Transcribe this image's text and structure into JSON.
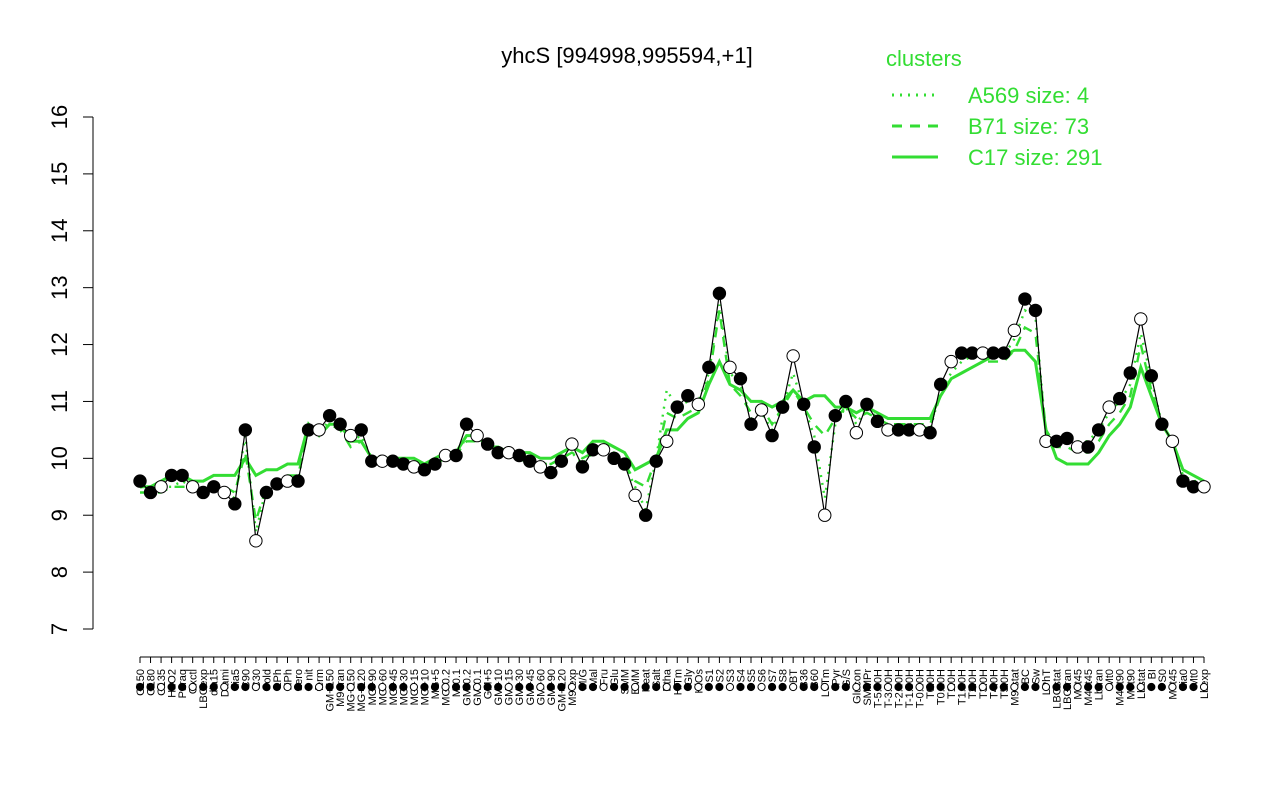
{
  "chart_data": {
    "type": "line",
    "title": "yhcS [994998,995594,+1]",
    "xlabel": "",
    "ylabel": "",
    "ylim": [
      7,
      16
    ],
    "yticks": [
      7,
      8,
      9,
      10,
      11,
      12,
      13,
      14,
      15,
      16
    ],
    "grid": false,
    "legend_position": "top-right",
    "legend": {
      "title": "clusters",
      "entries": [
        {
          "label": "A569 size: 4",
          "style": "dotted",
          "color": "#33dd33"
        },
        {
          "label": "B71 size: 73",
          "style": "dashed",
          "color": "#33dd33"
        },
        {
          "label": "C17 size: 291",
          "style": "solid",
          "color": "#33dd33"
        }
      ]
    },
    "x_tick_labels": [
      "G150",
      "G180",
      "G135",
      "H2O2",
      "Paraq",
      "Oxctl",
      "LBGexp",
      "dia15",
      "Diami",
      "dia5",
      "C90",
      "C30",
      "Cold",
      "LPh",
      "HPh",
      "aero",
      "nit",
      "ferm",
      "GM+150",
      "M9-tran",
      "MG+150",
      "MG+120",
      "MG+90",
      "MG+60",
      "MG+45",
      "MG+30",
      "MG+15",
      "MG+10",
      "MG+5",
      "MG-0.2",
      "M-0.1",
      "GM-0.2",
      "GM-0.1",
      "GM+5",
      "GM+10",
      "GM+15",
      "GM+30",
      "GM+45",
      "GM+60",
      "GM+90",
      "GM+120",
      "M9-exp",
      "M/G",
      "Mal",
      "Fru",
      "Glu",
      "SMM",
      "BMM",
      "Heat",
      "Salt",
      "Etha",
      "HiTm",
      "Gly",
      "HiOs",
      "S1",
      "S2",
      "S3",
      "S4",
      "S5",
      "S6",
      "S7",
      "S8",
      "BT",
      "B36",
      "B60",
      "LoTm",
      "Pyr",
      "G/S",
      "Glucon",
      "SMMPr",
      "T-5.40H",
      "T-3.40H",
      "T-2.40H",
      "T-1.40H",
      "T-0.40H",
      "T0.0H",
      "T0.30H",
      "T1.0H",
      "T1.30H",
      "T2.0H",
      "T3.0H",
      "T4.0H",
      "T5.0H",
      "M9-stat",
      "BC",
      "Sw",
      "LPhT",
      "LBGstat",
      "LBGtran",
      "M0t45",
      "M40t45",
      "Lbtran",
      "Mt0",
      "M40t90",
      "M0t90",
      "Lbstat",
      "BI",
      "S0",
      "M0t45",
      "dia0",
      "Mt0",
      "Lbexp"
    ],
    "series": [
      {
        "name": "A569 size: 4",
        "style": "dotted",
        "values": [
          9.5,
          9.4,
          9.5,
          9.5,
          9.6,
          9.5,
          9.4,
          9.5,
          9.4,
          9.3,
          10.4,
          8.7,
          9.5,
          9.6,
          9.6,
          9.6,
          10.6,
          10.4,
          10.7,
          10.6,
          10.3,
          10.4,
          10.0,
          10.0,
          9.9,
          9.9,
          9.9,
          9.8,
          9.9,
          10.0,
          10.0,
          10.4,
          10.4,
          10.2,
          10.1,
          10.1,
          10.0,
          9.9,
          9.9,
          9.9,
          10.0,
          10.1,
          9.9,
          10.1,
          10.1,
          10.0,
          9.9,
          9.5,
          9.1,
          10.0,
          11.2,
          10.9,
          11.0,
          11.0,
          11.5,
          12.7,
          11.5,
          11.3,
          10.7,
          10.8,
          10.5,
          10.9,
          11.5,
          10.9,
          10.4,
          9.3,
          10.6,
          10.9,
          10.6,
          10.9,
          10.7,
          10.6,
          10.6,
          10.6,
          10.6,
          10.5,
          11.2,
          11.5,
          11.7,
          11.8,
          11.8,
          11.8,
          11.8,
          12.1,
          12.6,
          12.5,
          10.4,
          10.3,
          10.4,
          10.3,
          10.3,
          10.5,
          10.8,
          11.0,
          11.3,
          12.2,
          11.4,
          10.6,
          10.3,
          9.7,
          9.6,
          9.6
        ]
      },
      {
        "name": "B71 size: 73",
        "style": "dashed",
        "values": [
          9.4,
          9.4,
          9.4,
          9.5,
          9.5,
          9.5,
          9.4,
          9.5,
          9.5,
          9.4,
          10.1,
          8.9,
          9.5,
          9.6,
          9.7,
          9.7,
          10.5,
          10.4,
          10.6,
          10.5,
          10.2,
          10.3,
          10.0,
          10.0,
          10.0,
          9.9,
          9.9,
          9.9,
          9.9,
          10.0,
          10.1,
          10.3,
          10.3,
          10.2,
          10.1,
          10.1,
          10.0,
          9.9,
          9.9,
          9.9,
          10.0,
          10.1,
          10.0,
          10.1,
          10.2,
          10.1,
          9.9,
          9.6,
          9.5,
          10.0,
          10.8,
          10.7,
          10.8,
          10.9,
          11.4,
          12.6,
          11.3,
          11.1,
          10.8,
          10.9,
          10.6,
          10.9,
          11.2,
          10.9,
          10.6,
          10.4,
          10.7,
          10.9,
          10.7,
          10.8,
          10.7,
          10.6,
          10.6,
          10.6,
          10.6,
          10.6,
          11.1,
          11.4,
          11.5,
          11.6,
          11.7,
          11.7,
          11.7,
          11.9,
          12.3,
          12.2,
          10.5,
          10.2,
          10.2,
          10.1,
          10.1,
          10.3,
          10.6,
          10.8,
          11.1,
          12.0,
          11.2,
          10.6,
          10.3,
          9.8,
          9.7,
          9.6
        ]
      },
      {
        "name": "C17 size: 291",
        "style": "solid",
        "values": [
          9.5,
          9.5,
          9.6,
          9.7,
          9.7,
          9.6,
          9.6,
          9.7,
          9.7,
          9.7,
          10.0,
          9.7,
          9.8,
          9.8,
          9.9,
          9.9,
          10.6,
          10.4,
          10.6,
          10.6,
          10.3,
          10.3,
          10.0,
          10.0,
          10.0,
          10.0,
          10.0,
          9.9,
          10.0,
          10.1,
          10.1,
          10.4,
          10.4,
          10.2,
          10.2,
          10.1,
          10.1,
          10.1,
          10.0,
          10.0,
          10.1,
          10.2,
          10.1,
          10.3,
          10.3,
          10.2,
          10.1,
          9.8,
          9.9,
          10.0,
          10.5,
          10.5,
          10.7,
          10.8,
          11.3,
          11.7,
          11.3,
          11.2,
          11.0,
          11.0,
          10.9,
          11.0,
          11.2,
          11.0,
          11.1,
          11.1,
          10.9,
          10.9,
          10.8,
          10.9,
          10.8,
          10.7,
          10.7,
          10.7,
          10.7,
          10.7,
          11.1,
          11.4,
          11.5,
          11.6,
          11.7,
          11.8,
          11.8,
          11.9,
          11.9,
          11.7,
          10.5,
          10.0,
          9.9,
          9.9,
          9.9,
          10.1,
          10.4,
          10.6,
          10.9,
          11.6,
          11.1,
          10.6,
          10.3,
          9.8,
          9.7,
          9.6
        ]
      },
      {
        "name": "",
        "style": "points",
        "values": [
          9.6,
          9.4,
          9.5,
          9.7,
          9.7,
          9.5,
          9.4,
          9.5,
          9.4,
          9.2,
          10.5,
          8.55,
          9.4,
          9.55,
          9.6,
          9.6,
          10.5,
          10.5,
          10.75,
          10.6,
          10.4,
          10.5,
          9.95,
          9.95,
          9.95,
          9.9,
          9.85,
          9.8,
          9.9,
          10.05,
          10.05,
          10.6,
          10.4,
          10.25,
          10.1,
          10.1,
          10.05,
          9.95,
          9.85,
          9.75,
          9.95,
          10.25,
          9.85,
          10.15,
          10.15,
          10.0,
          9.9,
          9.35,
          9.0,
          9.95,
          10.3,
          10.9,
          11.1,
          10.95,
          11.6,
          12.9,
          11.6,
          11.4,
          10.6,
          10.85,
          10.4,
          10.9,
          11.8,
          10.95,
          10.2,
          9.0,
          10.75,
          11.0,
          10.45,
          10.95,
          10.65,
          10.5,
          10.5,
          10.5,
          10.5,
          10.45,
          11.3,
          11.7,
          11.85,
          11.85,
          11.85,
          11.85,
          11.85,
          12.25,
          12.8,
          12.6,
          10.3,
          10.3,
          10.35,
          10.2,
          10.2,
          10.5,
          10.9,
          11.05,
          11.5,
          12.45,
          11.45,
          10.6,
          10.3,
          9.6,
          9.5,
          9.5
        ]
      }
    ]
  }
}
